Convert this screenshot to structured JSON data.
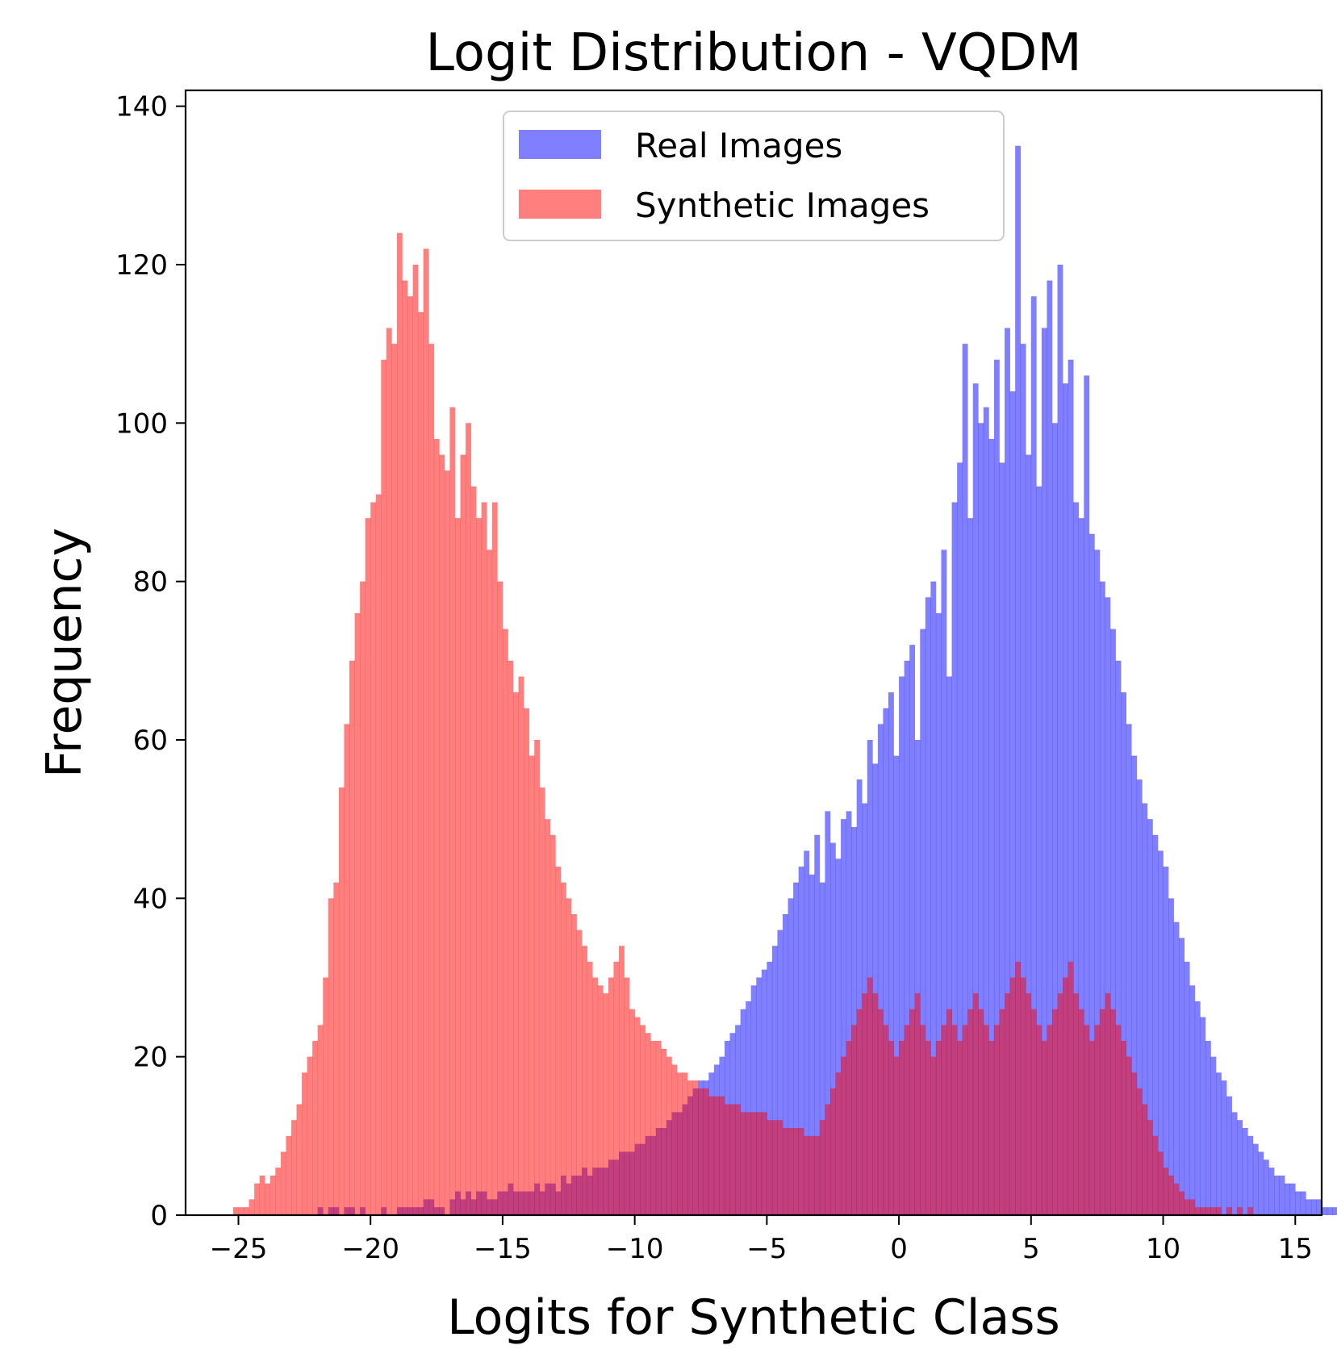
{
  "chart_data": {
    "type": "bar",
    "title": "Logit Distribution - VQDM",
    "xlabel": "Logits for Synthetic Class",
    "ylabel": "Frequency",
    "xlim": [
      -27,
      16
    ],
    "ylim": [
      0,
      142
    ],
    "xticks": [
      -25,
      -20,
      -15,
      -10,
      -5,
      0,
      5,
      10,
      15
    ],
    "xtick_labels": [
      "−25",
      "−20",
      "−15",
      "−10",
      "−5",
      "0",
      "5",
      "10",
      "15"
    ],
    "yticks": [
      0,
      20,
      40,
      60,
      80,
      100,
      120,
      140
    ],
    "ytick_labels": [
      "0",
      "20",
      "40",
      "60",
      "80",
      "100",
      "120",
      "140"
    ],
    "grid": false,
    "legend_position": "upper center",
    "bin_width": 0.2,
    "series": [
      {
        "name": "Real Images",
        "color": "#0000ff",
        "opacity": 0.5,
        "x_start": -22.0,
        "counts": [
          1,
          0,
          1,
          1,
          0,
          1,
          1,
          0,
          1,
          0,
          0,
          0,
          1,
          0,
          0,
          1,
          1,
          1,
          1,
          1,
          2,
          2,
          1,
          1,
          0,
          2,
          3,
          2,
          3,
          2,
          3,
          3,
          2,
          2,
          3,
          3,
          4,
          3,
          3,
          3,
          3,
          4,
          3,
          4,
          4,
          3,
          5,
          4,
          5,
          5,
          6,
          5,
          6,
          6,
          6,
          7,
          7,
          8,
          8,
          8,
          9,
          9,
          10,
          10,
          11,
          11,
          12,
          13,
          13,
          14,
          15,
          16,
          17,
          17,
          18,
          19,
          20,
          22,
          23,
          24,
          26,
          27,
          29,
          30,
          31,
          32,
          34,
          36,
          38,
          40,
          42,
          44,
          46,
          43,
          48,
          42,
          51,
          47,
          45,
          50,
          51,
          49,
          55,
          52,
          60,
          57,
          62,
          64,
          66,
          58,
          68,
          70,
          72,
          60,
          74,
          78,
          80,
          76,
          84,
          68,
          90,
          95,
          110,
          88,
          105,
          100,
          102,
          98,
          108,
          95,
          112,
          104,
          135,
          110,
          96,
          116,
          92,
          112,
          118,
          100,
          120,
          105,
          108,
          90,
          88,
          106,
          86,
          84,
          80,
          78,
          74,
          70,
          66,
          62,
          58,
          55,
          52,
          50,
          48,
          46,
          44,
          40,
          37,
          35,
          32,
          29,
          27,
          25,
          22,
          20,
          18,
          17,
          15,
          13,
          12,
          11,
          10,
          9,
          8,
          7,
          6,
          5,
          5,
          4,
          4,
          3,
          3,
          2,
          2,
          2,
          1,
          1,
          1,
          1,
          1,
          0,
          1,
          0,
          0,
          1,
          0,
          1,
          0,
          0,
          0,
          1,
          0,
          0,
          0,
          1
        ]
      },
      {
        "name": "Synthetic Images",
        "color": "#ff0000",
        "opacity": 0.5,
        "x_start": -25.2,
        "counts": [
          1,
          1,
          1,
          2,
          4,
          5,
          4,
          5,
          6,
          8,
          10,
          12,
          14,
          18,
          20,
          22,
          24,
          30,
          40,
          42,
          54,
          62,
          70,
          76,
          80,
          88,
          90,
          91,
          108,
          112,
          110,
          124,
          118,
          116,
          120,
          114,
          122,
          110,
          98,
          96,
          94,
          102,
          88,
          96,
          100,
          92,
          88,
          90,
          84,
          90,
          80,
          74,
          70,
          66,
          68,
          64,
          58,
          60,
          54,
          50,
          48,
          44,
          42,
          40,
          38,
          36,
          34,
          32,
          30,
          29,
          28,
          30,
          32,
          34,
          30,
          26,
          25,
          24,
          23,
          22,
          22,
          21,
          20,
          19,
          18,
          18,
          17,
          17,
          16,
          16,
          15,
          15,
          15,
          14,
          14,
          14,
          13,
          13,
          13,
          13,
          13,
          12,
          12,
          12,
          11,
          11,
          11,
          11,
          10,
          10,
          10,
          12,
          14,
          16,
          18,
          20,
          22,
          24,
          26,
          28,
          30,
          28,
          26,
          24,
          22,
          20,
          22,
          24,
          26,
          28,
          24,
          22,
          20,
          22,
          24,
          26,
          24,
          22,
          24,
          26,
          28,
          26,
          24,
          22,
          24,
          26,
          28,
          30,
          32,
          30,
          28,
          26,
          24,
          22,
          24,
          26,
          28,
          30,
          32,
          28,
          26,
          24,
          22,
          24,
          26,
          28,
          26,
          24,
          22,
          20,
          18,
          16,
          14,
          12,
          10,
          8,
          6,
          5,
          4,
          3,
          2,
          2,
          1,
          1,
          1,
          1,
          1,
          0,
          1,
          0,
          1,
          0,
          1
        ]
      }
    ]
  }
}
